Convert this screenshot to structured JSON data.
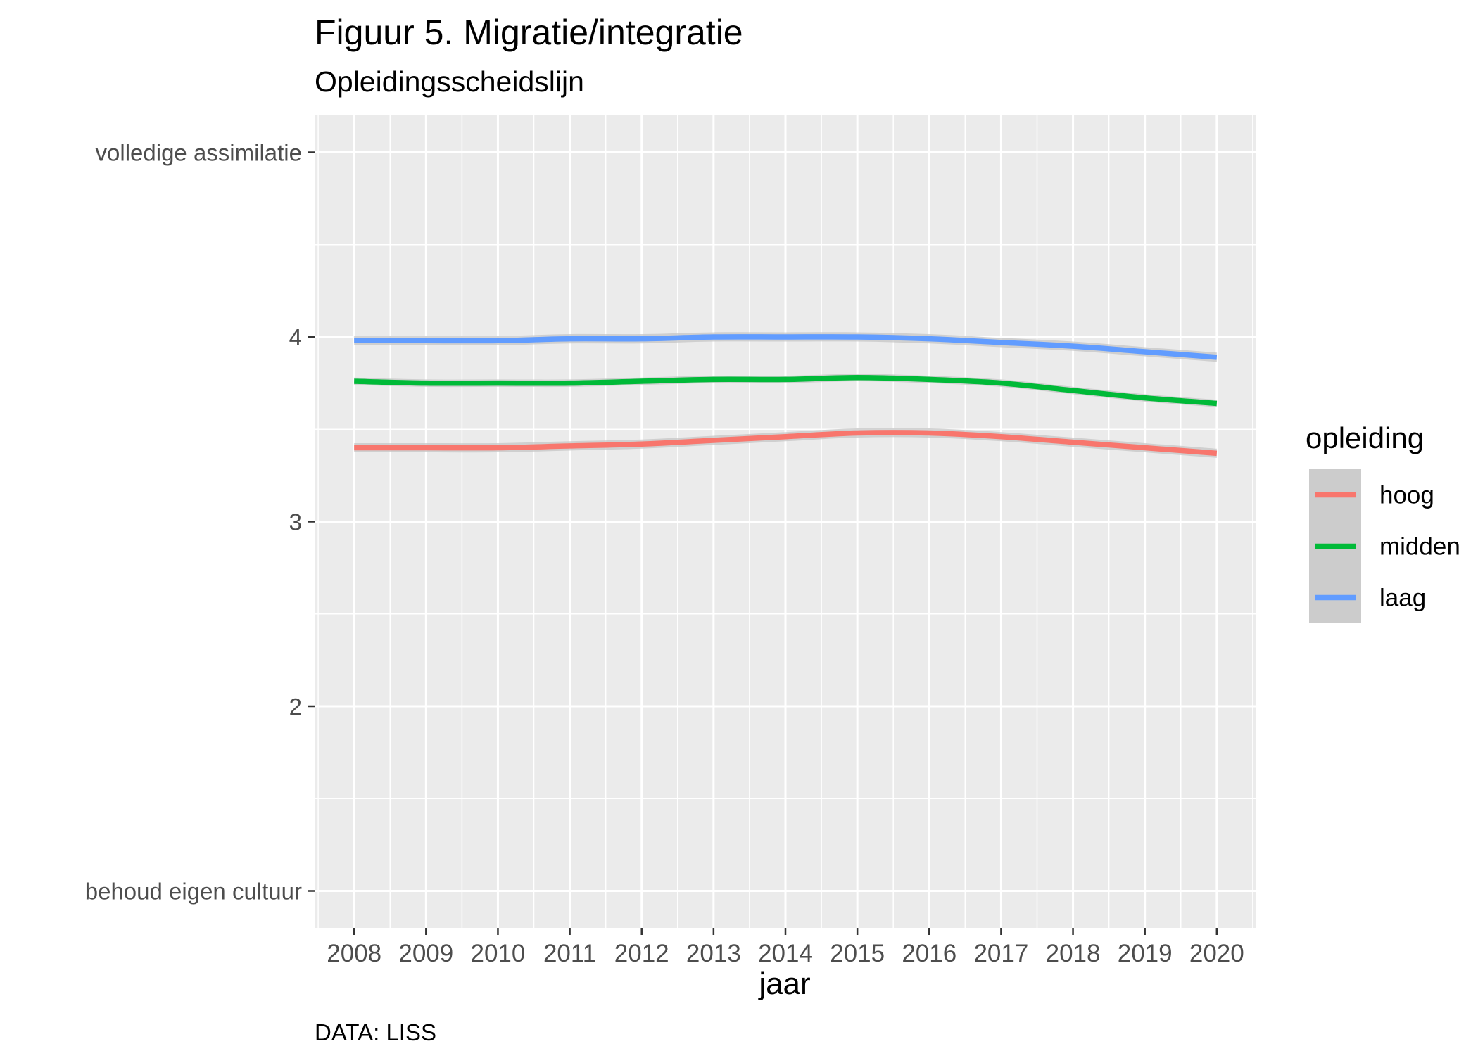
{
  "chart_data": {
    "type": "line",
    "title": "Figuur 5. Migratie/integratie",
    "subtitle": "Opleidingsscheidslijn",
    "xlabel": "jaar",
    "ylabel": "",
    "caption": "DATA: LISS",
    "x": [
      2008,
      2009,
      2010,
      2011,
      2012,
      2013,
      2014,
      2015,
      2016,
      2017,
      2018,
      2019,
      2020
    ],
    "xlim": [
      2007.45,
      2020.55
    ],
    "ylim": [
      0.8,
      5.2
    ],
    "y_ticks": [
      {
        "value": 1,
        "label": "behoud eigen cultuur"
      },
      {
        "value": 2,
        "label": "2"
      },
      {
        "value": 3,
        "label": "3"
      },
      {
        "value": 4,
        "label": "4"
      },
      {
        "value": 5,
        "label": "volledige assimilatie"
      }
    ],
    "grid": true,
    "confidence_band": true,
    "legend": {
      "title": "opleiding",
      "position": "right"
    },
    "series": [
      {
        "name": "hoog",
        "color": "#F8766D",
        "values": [
          3.4,
          3.4,
          3.4,
          3.41,
          3.42,
          3.44,
          3.46,
          3.48,
          3.48,
          3.46,
          3.43,
          3.4,
          3.37
        ],
        "band": 0.025
      },
      {
        "name": "midden",
        "color": "#00BA38",
        "values": [
          3.76,
          3.75,
          3.75,
          3.75,
          3.76,
          3.77,
          3.77,
          3.78,
          3.77,
          3.75,
          3.71,
          3.67,
          3.64
        ],
        "band": 0.02
      },
      {
        "name": "laag",
        "color": "#619CFF",
        "values": [
          3.98,
          3.98,
          3.98,
          3.99,
          3.99,
          4.0,
          4.0,
          4.0,
          3.99,
          3.97,
          3.95,
          3.92,
          3.89
        ],
        "band": 0.025
      }
    ]
  }
}
